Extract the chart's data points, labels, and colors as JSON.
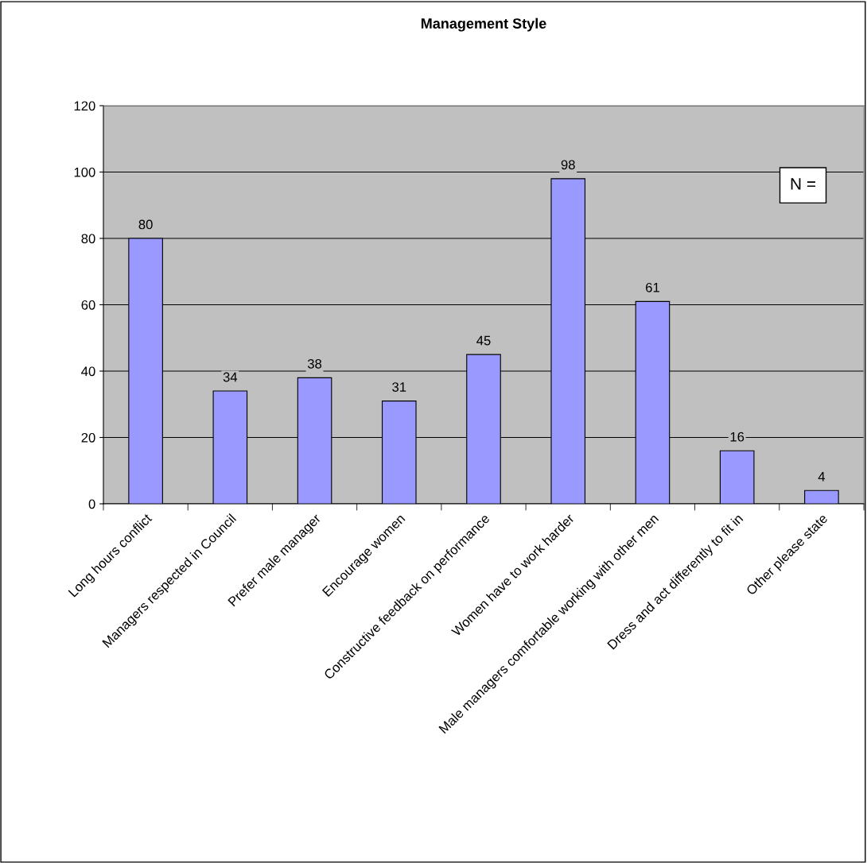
{
  "chart_data": {
    "type": "bar",
    "title": "Management Style",
    "categories": [
      "Long hours conflict",
      "Managers respected in Council",
      "Prefer male manager",
      "Encourage women",
      "Constructive feedback on performance",
      "Women have to work harder",
      "Male managers comfortable working with other men",
      "Dress and act differently to fit in",
      "Other please state"
    ],
    "values": [
      80,
      34,
      38,
      31,
      45,
      98,
      61,
      16,
      4
    ],
    "color": "#9999ff",
    "ylim": [
      0,
      120
    ],
    "yticks": [
      0,
      20,
      40,
      60,
      80,
      100,
      120
    ],
    "grid": "y",
    "data_labels": true,
    "annotations": [
      "N ="
    ]
  }
}
